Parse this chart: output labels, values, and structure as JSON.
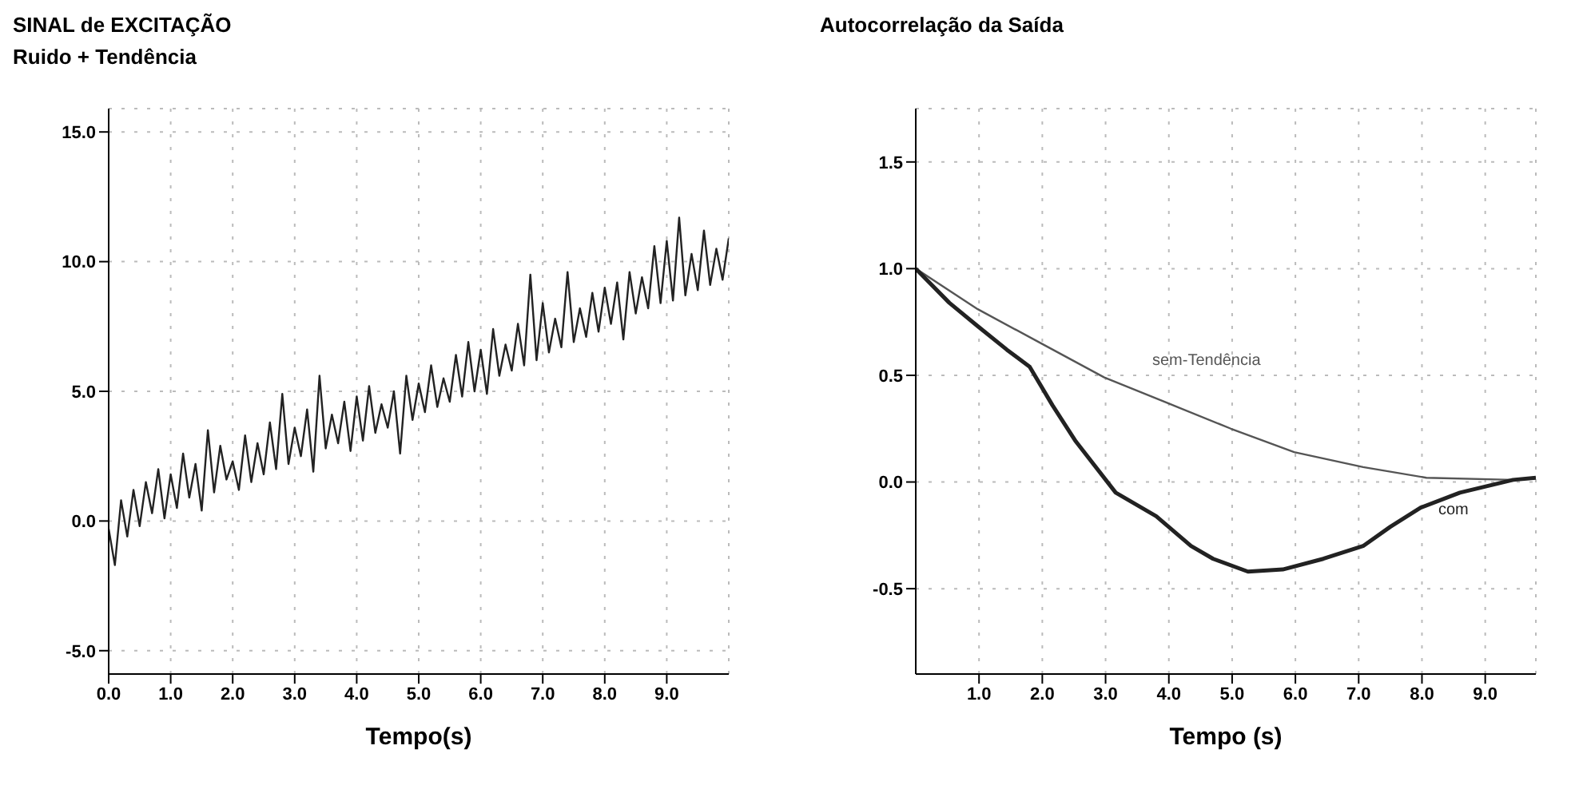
{
  "chart_data": [
    {
      "type": "line",
      "title": "SINAL de EXCITAÇÃO",
      "subtitle": "Ruido + Tendência",
      "xlabel": "Tempo(s)",
      "marker": "none",
      "grid": true,
      "xlim": [
        0,
        10
      ],
      "ylim": [
        -5.9,
        15.9
      ],
      "xticks": [
        {
          "value": 0,
          "label": "0.0"
        },
        {
          "value": 1,
          "label": "1.0"
        },
        {
          "value": 2,
          "label": "2.0"
        },
        {
          "value": 3,
          "label": "3.0"
        },
        {
          "value": 4,
          "label": "4.0"
        },
        {
          "value": 5,
          "label": "5.0"
        },
        {
          "value": 6,
          "label": "6.0"
        },
        {
          "value": 7,
          "label": "7.0"
        },
        {
          "value": 8,
          "label": "8.0"
        },
        {
          "value": 9,
          "label": "9.0"
        }
      ],
      "yticks": [
        {
          "value": -5,
          "label": "-5.0"
        },
        {
          "value": 0,
          "label": "0.0"
        },
        {
          "value": 5,
          "label": "5.0"
        },
        {
          "value": 10,
          "label": "10.0"
        },
        {
          "value": 15,
          "label": "15.0"
        }
      ],
      "series": [
        {
          "color": "#222222",
          "x": [
            0,
            0.1,
            0.2,
            0.3,
            0.4,
            0.5,
            0.6,
            0.7,
            0.8,
            0.9,
            1,
            1.1,
            1.2,
            1.3,
            1.4,
            1.5,
            1.6,
            1.7,
            1.8,
            1.9,
            2,
            2.1,
            2.2,
            2.3,
            2.4,
            2.5,
            2.6,
            2.7,
            2.8,
            2.9,
            3,
            3.1,
            3.2,
            3.3,
            3.4,
            3.5,
            3.6,
            3.7,
            3.8,
            3.9,
            4,
            4.1,
            4.2,
            4.3,
            4.4,
            4.5,
            4.6,
            4.7,
            4.8,
            4.9,
            5,
            5.1,
            5.2,
            5.3,
            5.4,
            5.5,
            5.6,
            5.7,
            5.8,
            5.9,
            6,
            6.1,
            6.2,
            6.3,
            6.4,
            6.5,
            6.6,
            6.7,
            6.8,
            6.9,
            7,
            7.1,
            7.2,
            7.3,
            7.4,
            7.5,
            7.6,
            7.7,
            7.8,
            7.9,
            8,
            8.1,
            8.2,
            8.3,
            8.4,
            8.5,
            8.6,
            8.7,
            8.8,
            8.9,
            9,
            9.1,
            9.2,
            9.3,
            9.4,
            9.5,
            9.6,
            9.7,
            9.8,
            9.9,
            10
          ],
          "values": [
            -0.3,
            -1.7,
            0.8,
            -0.6,
            1.2,
            -0.2,
            1.5,
            0.3,
            2.0,
            0.1,
            1.8,
            0.5,
            2.6,
            0.9,
            2.2,
            0.4,
            3.5,
            1.1,
            2.9,
            1.6,
            2.3,
            1.2,
            3.3,
            1.5,
            3.0,
            1.8,
            3.8,
            2.0,
            4.9,
            2.2,
            3.6,
            2.5,
            4.3,
            1.9,
            5.6,
            2.8,
            4.1,
            3.0,
            4.6,
            2.7,
            4.8,
            3.1,
            5.2,
            3.4,
            4.5,
            3.6,
            5.0,
            2.6,
            5.6,
            3.9,
            5.3,
            4.2,
            6.0,
            4.4,
            5.5,
            4.6,
            6.4,
            4.8,
            6.9,
            5.0,
            6.6,
            4.9,
            7.4,
            5.6,
            6.8,
            5.8,
            7.6,
            6.0,
            9.5,
            6.2,
            8.4,
            6.5,
            7.8,
            6.7,
            9.6,
            6.9,
            8.2,
            7.1,
            8.8,
            7.3,
            9.0,
            7.6,
            9.2,
            7.0,
            9.6,
            8.0,
            9.4,
            8.2,
            10.6,
            8.4,
            10.8,
            8.5,
            11.7,
            8.7,
            10.3,
            8.9,
            11.2,
            9.1,
            10.5,
            9.3,
            10.9
          ]
        }
      ]
    },
    {
      "type": "line",
      "title": "Autocorrelação da Saída",
      "xlabel": "Tempo (s)",
      "marker": "none",
      "grid": true,
      "xlim": [
        0,
        9.8
      ],
      "ylim": [
        -0.9,
        1.75
      ],
      "xticks": [
        {
          "value": 1,
          "label": "1.0"
        },
        {
          "value": 2,
          "label": "2.0"
        },
        {
          "value": 3,
          "label": "3.0"
        },
        {
          "value": 4,
          "label": "4.0"
        },
        {
          "value": 5,
          "label": "5.0"
        },
        {
          "value": 6,
          "label": "6.0"
        },
        {
          "value": 7,
          "label": "7.0"
        },
        {
          "value": 8,
          "label": "8.0"
        },
        {
          "value": 9,
          "label": "9.0"
        }
      ],
      "yticks": [
        {
          "value": -0.5,
          "label": "-0.5"
        },
        {
          "value": 0,
          "label": "0.0"
        },
        {
          "value": 0.5,
          "label": "0.5"
        },
        {
          "value": 1,
          "label": "1.0"
        },
        {
          "value": 1.5,
          "label": "1.5"
        }
      ],
      "series": [
        {
          "name": "sem-Tendência",
          "color": "#555555",
          "x": [
            0,
            0.98,
            1.98,
            2.98,
            3.98,
            4.98,
            5.98,
            7.07,
            8.07,
            9.44,
            9.8
          ],
          "values": [
            1.0,
            0.81,
            0.65,
            0.49,
            0.37,
            0.25,
            0.14,
            0.07,
            0.02,
            0.01,
            0.02
          ]
        },
        {
          "name": "com",
          "color": "#222222",
          "x": [
            0,
            0.53,
            0.98,
            1.44,
            1.8,
            2.16,
            2.53,
            3.16,
            3.8,
            4.35,
            4.7,
            5.25,
            5.8,
            6.44,
            7.07,
            7.5,
            7.98,
            8.6,
            9.44,
            9.8
          ],
          "values": [
            1.0,
            0.84,
            0.73,
            0.62,
            0.54,
            0.36,
            0.19,
            -0.05,
            -0.16,
            -0.3,
            -0.36,
            -0.42,
            -0.41,
            -0.36,
            -0.3,
            -0.21,
            -0.12,
            -0.05,
            0.01,
            0.02
          ]
        }
      ]
    }
  ]
}
